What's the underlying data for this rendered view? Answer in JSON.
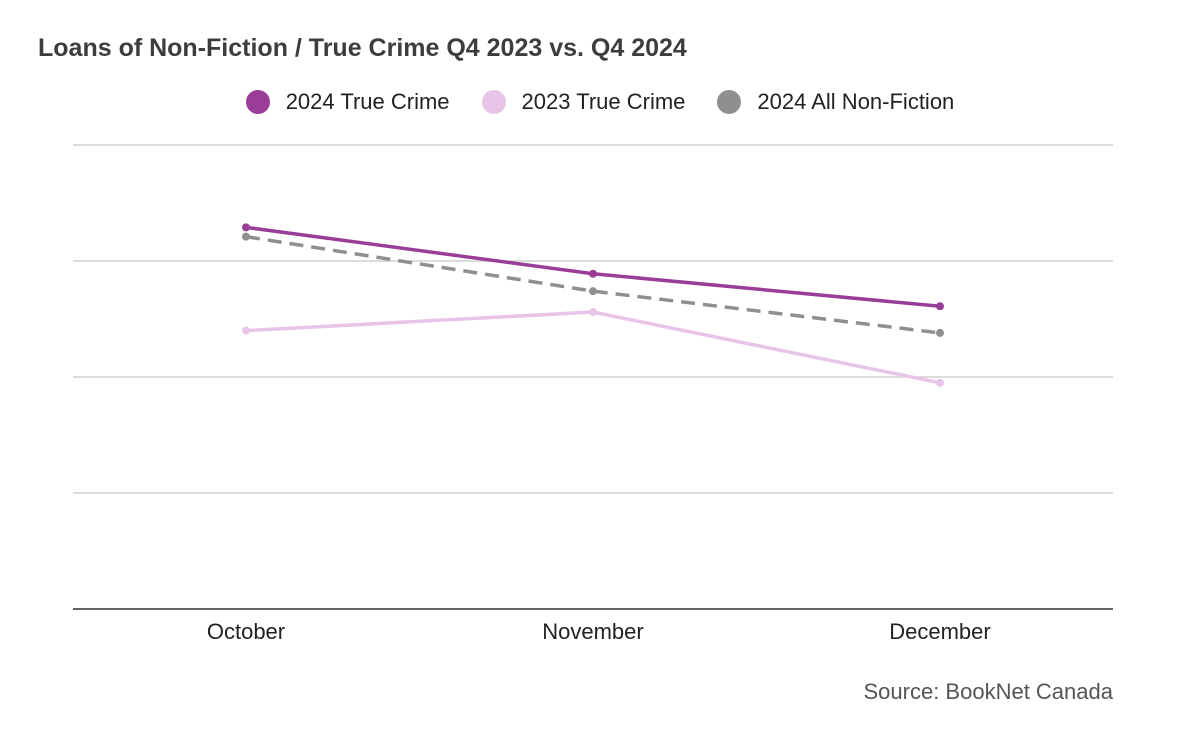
{
  "chart_data": {
    "type": "line",
    "title": "Loans of Non-Fiction / True Crime Q4 2023 vs. Q4 2024",
    "categories": [
      "October",
      "November",
      "December"
    ],
    "series": [
      {
        "name": "2024 True Crime",
        "color": "#993d99",
        "dashed": false,
        "values": [
          3.29,
          2.89,
          2.61
        ]
      },
      {
        "name": "2023 True Crime",
        "color": "#e8c4e8",
        "dashed": false,
        "values": [
          2.4,
          2.56,
          1.95
        ]
      },
      {
        "name": "2024 All Non-Fiction",
        "color": "#8f8f8f",
        "dashed": true,
        "values": [
          3.21,
          2.74,
          2.38
        ]
      }
    ],
    "ylim": [
      0,
      4
    ],
    "gridlines": [
      1,
      2,
      3,
      4
    ],
    "y_tick_labels_shown": false,
    "grid": true,
    "legend_position": "top-center",
    "xlabel": "",
    "ylabel": ""
  },
  "source": "Source: BookNet Canada"
}
